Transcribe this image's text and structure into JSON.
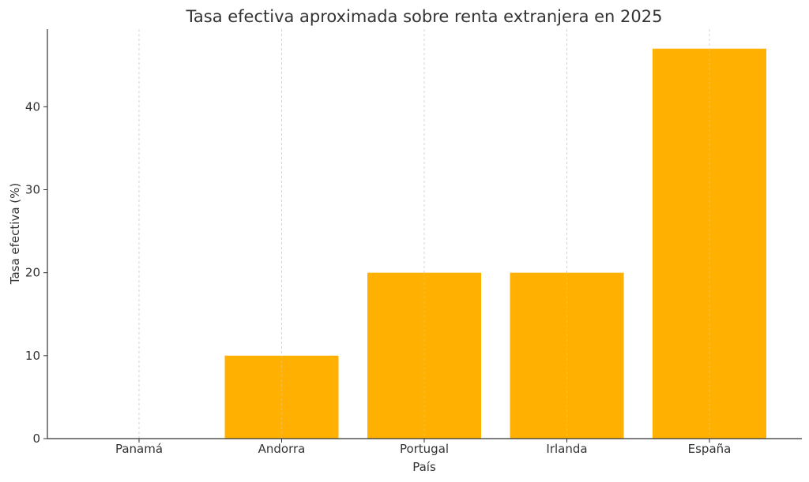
{
  "chart_data": {
    "type": "bar",
    "title": "Tasa efectiva aproximada sobre renta extranjera en 2025",
    "xlabel": "País",
    "ylabel": "Tasa efectiva (%)",
    "categories": [
      "Panamá",
      "Andorra",
      "Portugal",
      "Irlanda",
      "España"
    ],
    "values": [
      0,
      10,
      20,
      20,
      47
    ],
    "ylim": [
      0,
      49.35
    ],
    "yticks": [
      0,
      10,
      20,
      30,
      40
    ],
    "bar_color": "#FFB000",
    "grid": "vertical dashed lines at categories",
    "legend": "none"
  }
}
